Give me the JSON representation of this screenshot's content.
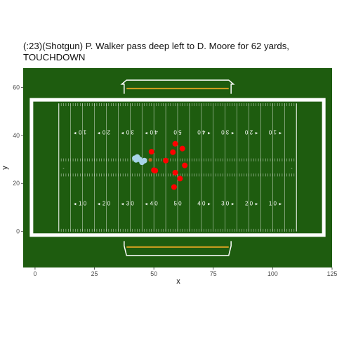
{
  "chart_data": {
    "type": "scatter",
    "title": "(:23)(Shotgun) P. Walker pass deep left to D. Moore for 62 yards, TOUCHDOWN",
    "xlabel": "x",
    "ylabel": "y",
    "xlim": [
      -5,
      125
    ],
    "ylim": [
      -15,
      68
    ],
    "x_ticks": [
      0,
      25,
      50,
      75,
      100,
      125
    ],
    "y_ticks": [
      0,
      20,
      40,
      60
    ],
    "grid": false,
    "background_colors": {
      "field": "#1e5c0f",
      "lines": "#ffffff",
      "goal_line": "#d4a020"
    },
    "field": {
      "sideline_y": [
        0,
        53.3
      ],
      "endlines_x": [
        0,
        120
      ],
      "goal_lines_x": [
        10,
        110
      ],
      "yard_numbers_bottom": [
        {
          "x": 20,
          "label": "1 0"
        },
        {
          "x": 30,
          "label": "2 0"
        },
        {
          "x": 40,
          "label": "3 0"
        },
        {
          "x": 50,
          "label": "4 0"
        },
        {
          "x": 60,
          "label": "5 0"
        },
        {
          "x": 70,
          "label": "4 0"
        },
        {
          "x": 80,
          "label": "3 0"
        },
        {
          "x": 90,
          "label": "2 0"
        },
        {
          "x": 100,
          "label": "1 0"
        }
      ],
      "yard_numbers_top": [
        {
          "x": 20,
          "label": "1 0"
        },
        {
          "x": 30,
          "label": "2 0"
        },
        {
          "x": 40,
          "label": "3 0"
        },
        {
          "x": 50,
          "label": "4 0"
        },
        {
          "x": 60,
          "label": "5 0"
        },
        {
          "x": 70,
          "label": "4 0"
        },
        {
          "x": 80,
          "label": "3 0"
        },
        {
          "x": 90,
          "label": "2 0"
        },
        {
          "x": 100,
          "label": "1 0"
        }
      ],
      "arrows_bottom": [
        {
          "x": 20,
          "dir": "left"
        },
        {
          "x": 30,
          "dir": "left"
        },
        {
          "x": 40,
          "dir": "left"
        },
        {
          "x": 50,
          "dir": "left"
        },
        {
          "x": 70,
          "dir": "right"
        },
        {
          "x": 80,
          "dir": "right"
        },
        {
          "x": 90,
          "dir": "right"
        },
        {
          "x": 100,
          "dir": "right"
        }
      ],
      "arrows_top": [
        {
          "x": 20,
          "dir": "left"
        },
        {
          "x": 30,
          "dir": "left"
        },
        {
          "x": 40,
          "dir": "left"
        },
        {
          "x": 50,
          "dir": "left"
        },
        {
          "x": 70,
          "dir": "right"
        },
        {
          "x": 80,
          "dir": "right"
        },
        {
          "x": 90,
          "dir": "right"
        },
        {
          "x": 100,
          "dir": "right"
        }
      ]
    },
    "series": [
      {
        "color": "#ff0000",
        "points": [
          {
            "x": 59.0,
            "y": 36.5
          },
          {
            "x": 62.0,
            "y": 34.5
          },
          {
            "x": 49.0,
            "y": 33.2
          },
          {
            "x": 58.0,
            "y": 33.0
          },
          {
            "x": 55.0,
            "y": 29.5
          },
          {
            "x": 63.0,
            "y": 27.5
          },
          {
            "x": 50.0,
            "y": 25.5
          },
          {
            "x": 50.6,
            "y": 25.3
          },
          {
            "x": 59.0,
            "y": 24.5
          },
          {
            "x": 61.0,
            "y": 22.0
          },
          {
            "x": 58.5,
            "y": 18.5
          }
        ]
      },
      {
        "color": "#a8d4e8",
        "points": [
          {
            "x": 42.0,
            "y": 30.5
          },
          {
            "x": 43.0,
            "y": 31.0
          },
          {
            "x": 44.0,
            "y": 30.0
          },
          {
            "x": 45.0,
            "y": 28.8
          },
          {
            "x": 46.0,
            "y": 29.5
          },
          {
            "x": 42.5,
            "y": 29.8
          }
        ]
      },
      {
        "color": "#b5651d",
        "points": [
          {
            "x": 48.5,
            "y": 29.8
          }
        ]
      }
    ]
  }
}
